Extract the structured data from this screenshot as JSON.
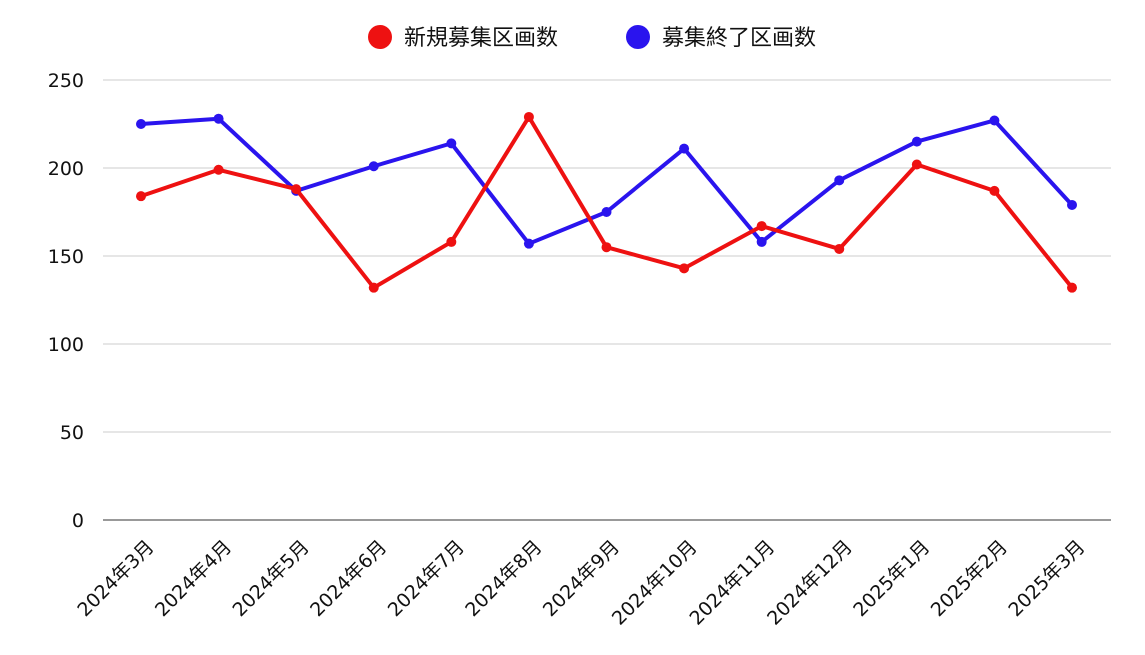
{
  "chart_data": {
    "type": "line",
    "categories": [
      "2024年3月",
      "2024年4月",
      "2024年5月",
      "2024年6月",
      "2024年7月",
      "2024年8月",
      "2024年9月",
      "2024年10月",
      "2024年11月",
      "2024年12月",
      "2025年1月",
      "2025年2月",
      "2025年3月"
    ],
    "series": [
      {
        "name": "新規募集区画数",
        "color": "#ee1111",
        "values": [
          184,
          199,
          188,
          132,
          158,
          229,
          155,
          143,
          167,
          154,
          202,
          187,
          132
        ]
      },
      {
        "name": "募集終了区画数",
        "color": "#2a14ee",
        "values": [
          225,
          228,
          187,
          201,
          214,
          157,
          175,
          211,
          158,
          193,
          215,
          227,
          179
        ]
      }
    ],
    "ylim": [
      0,
      250
    ],
    "yticks": [
      "0",
      "50",
      "100",
      "150",
      "200",
      "250"
    ],
    "grid": true,
    "legend_position": "top-center"
  }
}
